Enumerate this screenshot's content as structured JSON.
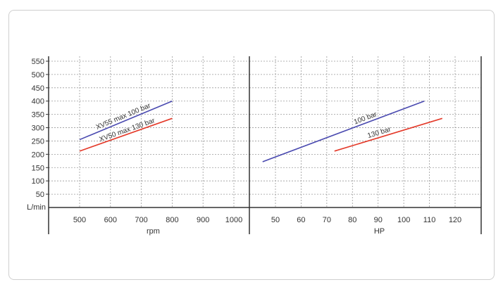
{
  "chart_data": [
    {
      "type": "line",
      "xlabel": "rpm",
      "ylabel": "L/min",
      "xlim": [
        400,
        1050
      ],
      "ylim": [
        0,
        560
      ],
      "x_ticks": [
        500,
        600,
        700,
        800,
        900,
        1000
      ],
      "y_ticks": [
        50,
        100,
        150,
        200,
        250,
        300,
        350,
        400,
        450,
        500,
        550
      ],
      "grid": true,
      "series": [
        {
          "name": "XV55 max 100 bar",
          "color": "#4a4ab0",
          "x": [
            500,
            800
          ],
          "y": [
            255,
            400
          ]
        },
        {
          "name": "XV50 max 130 bar",
          "color": "#e43a2a",
          "x": [
            500,
            800
          ],
          "y": [
            212,
            335
          ]
        }
      ]
    },
    {
      "type": "line",
      "xlabel": "HP",
      "xlim": [
        40,
        130
      ],
      "ylim": [
        0,
        560
      ],
      "x_ticks": [
        50,
        60,
        70,
        80,
        90,
        100,
        110,
        120
      ],
      "grid": true,
      "series": [
        {
          "name": "100 bar",
          "color": "#4a4ab0",
          "x": [
            45,
            108
          ],
          "y": [
            172,
            400
          ]
        },
        {
          "name": "130 bar",
          "color": "#e43a2a",
          "x": [
            73,
            115
          ],
          "y": [
            212,
            335
          ]
        }
      ]
    }
  ]
}
